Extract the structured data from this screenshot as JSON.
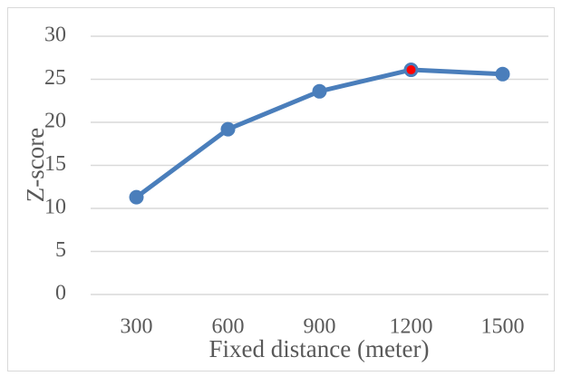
{
  "chart_data": {
    "type": "line",
    "x_label": "Fixed distance (meter)",
    "y_label": "Z-score",
    "categories": [
      "300",
      "600",
      "900",
      "1200",
      "1500"
    ],
    "series": [
      {
        "name": "Z-score",
        "color": "#4a7ebb",
        "values": [
          11.3,
          19.2,
          23.6,
          26.1,
          25.6
        ],
        "marker_colors": [
          "#4a7ebb",
          "#4a7ebb",
          "#4a7ebb",
          "#ff0000",
          "#4a7ebb"
        ]
      }
    ],
    "ylim": [
      0,
      30
    ],
    "yticks": [
      0,
      5,
      10,
      15,
      20,
      25,
      30
    ],
    "grid": true
  }
}
